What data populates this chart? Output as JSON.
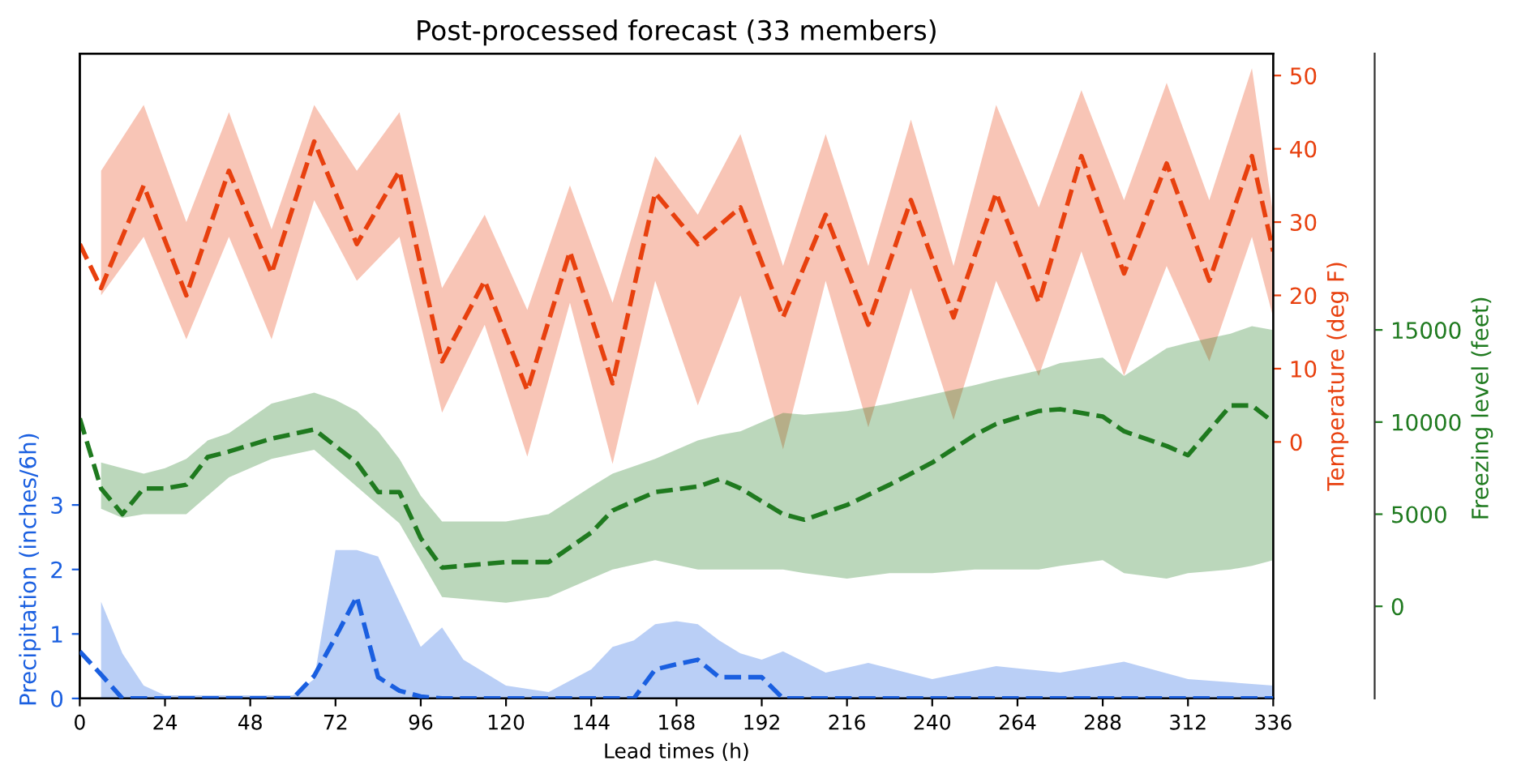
{
  "chart_data": {
    "type": "line",
    "title": "Post-processed forecast (33 members)",
    "xlabel": "Lead times (h)",
    "ylabel": "Precipitation (inches/6h)",
    "y2label": "Temperature (deg F)",
    "y3label": "Freezing level (feet)",
    "xlim": [
      0,
      336
    ],
    "xticks": [
      0,
      24,
      48,
      72,
      96,
      120,
      144,
      168,
      192,
      216,
      240,
      264,
      288,
      312,
      336
    ],
    "ylim": [
      0,
      10
    ],
    "yticks": [
      0,
      1,
      2,
      3
    ],
    "y2lim": [
      -35,
      53
    ],
    "y2ticks": [
      0,
      10,
      20,
      30,
      40,
      50
    ],
    "y3lim": [
      -5000,
      30000
    ],
    "y3ticks": [
      0,
      5000,
      10000,
      15000
    ],
    "grid": false,
    "legend": false,
    "line_style": "dashed",
    "marker": "none",
    "series": [
      {
        "axis": "y2",
        "color": "#e8400e",
        "x": [
          0,
          6,
          18,
          30,
          42,
          54,
          66,
          78,
          90,
          102,
          114,
          126,
          138,
          150,
          162,
          174,
          186,
          198,
          210,
          222,
          234,
          246,
          258,
          270,
          282,
          294,
          306,
          318,
          330,
          336
        ],
        "values": [
          27,
          21,
          35,
          20,
          37,
          23,
          41,
          27,
          37,
          11,
          22,
          7,
          26,
          8,
          34,
          27,
          32,
          17,
          31,
          16,
          33,
          17,
          34,
          19,
          39,
          23,
          38,
          22,
          39,
          26
        ],
        "lower": [
          null,
          20,
          28,
          14,
          28,
          14,
          33,
          22,
          28,
          4,
          16,
          -2,
          19,
          -3,
          22,
          5,
          20,
          -1,
          22,
          2,
          21,
          3,
          22,
          9,
          26,
          9,
          24,
          11,
          28,
          17
        ],
        "upper": [
          null,
          37,
          46,
          30,
          45,
          29,
          46,
          37,
          45,
          21,
          31,
          18,
          35,
          19,
          39,
          31,
          42,
          24,
          42,
          24,
          44,
          24,
          46,
          32,
          48,
          33,
          49,
          33,
          51,
          31
        ]
      },
      {
        "axis": "y3",
        "color": "#1f7a1f",
        "x": [
          0,
          6,
          12,
          18,
          24,
          30,
          36,
          42,
          54,
          66,
          72,
          78,
          84,
          90,
          96,
          102,
          120,
          132,
          144,
          150,
          162,
          174,
          180,
          186,
          198,
          204,
          216,
          228,
          240,
          252,
          258,
          270,
          276,
          288,
          294,
          306,
          312,
          324,
          330,
          336
        ],
        "values": [
          10200,
          6400,
          5000,
          6400,
          6400,
          6600,
          8100,
          8400,
          9100,
          9600,
          8700,
          7800,
          6200,
          6200,
          3700,
          2100,
          2400,
          2400,
          4000,
          5200,
          6200,
          6500,
          6900,
          6400,
          5000,
          4700,
          5500,
          6600,
          7800,
          9300,
          9900,
          10600,
          10700,
          10300,
          9500,
          8700,
          8200,
          10900,
          10900,
          10000
        ],
        "lower": [
          null,
          5300,
          4800,
          5000,
          5000,
          5000,
          6000,
          7000,
          8000,
          8500,
          7500,
          6500,
          5500,
          4500,
          2500,
          500,
          200,
          500,
          1500,
          2000,
          2500,
          2000,
          2000,
          2000,
          2000,
          1800,
          1500,
          1800,
          1800,
          2000,
          2000,
          2000,
          2200,
          2500,
          1800,
          1500,
          1800,
          2000,
          2200,
          2500
        ],
        "upper": [
          null,
          7800,
          7500,
          7200,
          7500,
          8000,
          9000,
          9400,
          11000,
          11600,
          11200,
          10600,
          9500,
          8000,
          6000,
          4600,
          4600,
          5000,
          6500,
          7200,
          8000,
          9000,
          9300,
          9500,
          10500,
          10400,
          10600,
          11000,
          11500,
          12000,
          12300,
          12800,
          13200,
          13500,
          12500,
          14000,
          14300,
          14800,
          15200,
          15000
        ]
      },
      {
        "axis": "y",
        "color": "#1a5fe0",
        "x": [
          0,
          6,
          12,
          18,
          24,
          60,
          66,
          72,
          78,
          84,
          90,
          96,
          102,
          108,
          120,
          132,
          144,
          150,
          156,
          162,
          168,
          174,
          180,
          186,
          192,
          198,
          210,
          222,
          240,
          258,
          276,
          294,
          312,
          336
        ],
        "values": [
          0.73,
          0.37,
          0,
          0,
          0,
          0,
          0.35,
          0.95,
          1.58,
          0.33,
          0.12,
          0.03,
          0,
          0,
          0,
          0,
          0,
          0,
          0,
          0.45,
          0.53,
          0.6,
          0.33,
          0.33,
          0.33,
          0,
          0,
          0,
          0,
          0,
          0,
          0,
          0,
          0
        ],
        "lower": [
          null,
          0,
          0,
          0,
          0,
          0,
          0,
          0,
          0,
          0,
          0,
          0,
          0,
          0,
          0,
          0,
          0,
          0,
          0,
          0,
          0,
          0,
          0,
          0,
          0,
          0,
          0,
          0,
          0,
          0,
          0,
          0,
          0,
          0
        ],
        "upper": [
          null,
          1.5,
          0.7,
          0.2,
          0.05,
          0.05,
          0.3,
          2.3,
          2.3,
          2.2,
          1.5,
          0.8,
          1.1,
          0.6,
          0.2,
          0.1,
          0.45,
          0.8,
          0.9,
          1.15,
          1.2,
          1.15,
          0.9,
          0.7,
          0.6,
          0.73,
          0.4,
          0.55,
          0.3,
          0.5,
          0.4,
          0.57,
          0.3,
          0.2
        ]
      }
    ]
  }
}
